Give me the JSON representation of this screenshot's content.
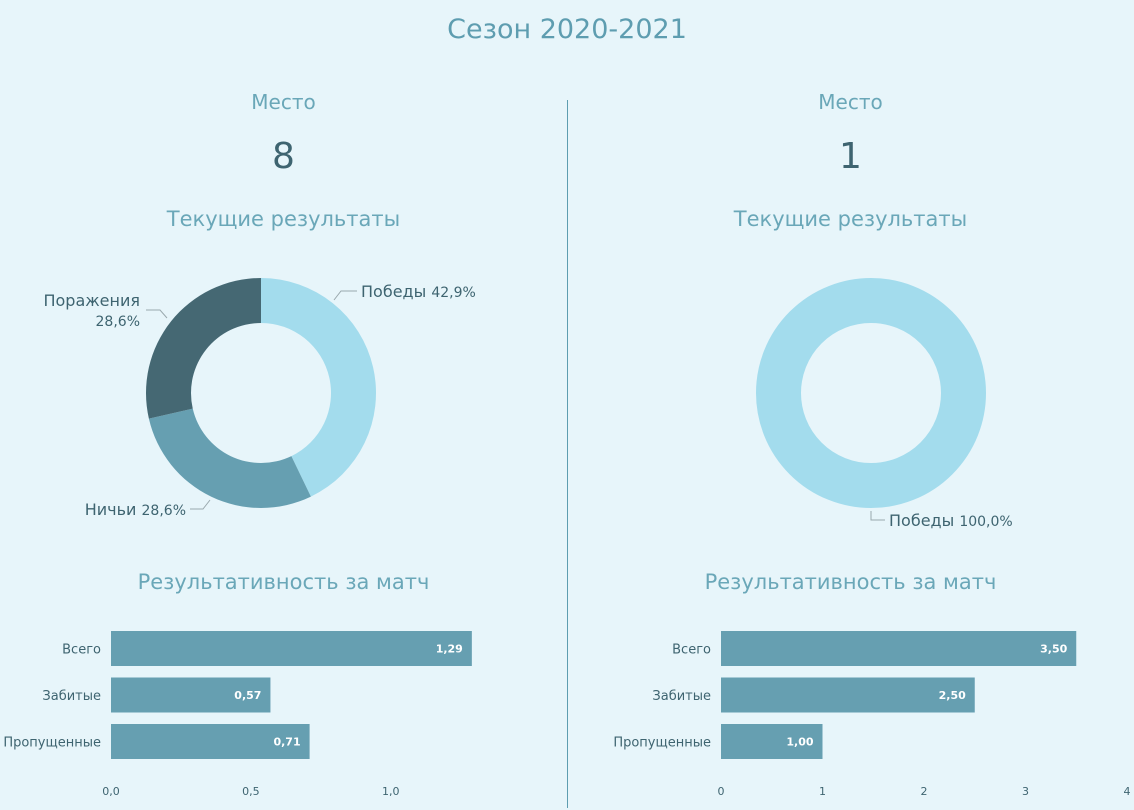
{
  "page_title": "Сезон 2020-2021",
  "colors": {
    "background": "#e7f5fa",
    "wins": "#a3dced",
    "draws": "#669fb1",
    "losses": "#456873",
    "bar": "#669fb1",
    "text_accent": "#6aa7b8",
    "text_dark": "#3e6470"
  },
  "left": {
    "place_label": "Место",
    "place_value": "8",
    "results_title": "Текущие результаты",
    "perf_title": "Результативность за матч"
  },
  "right": {
    "place_label": "Место",
    "place_value": "1",
    "results_title": "Текущие результаты",
    "perf_title": "Результативность за матч"
  },
  "chart_data": [
    {
      "id": "left-donut",
      "type": "pie",
      "title": "Текущие результаты",
      "slices": [
        {
          "label": "Победы",
          "value": 42.9,
          "display": "42,9%"
        },
        {
          "label": "Ничьи",
          "value": 28.6,
          "display": "28,6%"
        },
        {
          "label": "Поражения",
          "value": 28.6,
          "display": "28,6%"
        }
      ]
    },
    {
      "id": "right-donut",
      "type": "pie",
      "title": "Текущие результаты",
      "slices": [
        {
          "label": "Победы",
          "value": 100.0,
          "display": "100,0%"
        }
      ]
    },
    {
      "id": "left-bars",
      "type": "bar",
      "orientation": "horizontal",
      "title": "Результативность за матч",
      "categories": [
        "Всего",
        "Забитые",
        "Пропущенные"
      ],
      "values": [
        1.29,
        0.57,
        0.71
      ],
      "value_labels": [
        "1,29",
        "0,57",
        "0,71"
      ],
      "xlim": [
        0,
        1.43
      ],
      "ticks": [
        0,
        0.5,
        1.0
      ],
      "tick_labels": [
        "0,0",
        "0,5",
        "1,0"
      ]
    },
    {
      "id": "right-bars",
      "type": "bar",
      "orientation": "horizontal",
      "title": "Результативность за матч",
      "categories": [
        "Всего",
        "Забитые",
        "Пропущенные"
      ],
      "values": [
        3.5,
        2.5,
        1.0
      ],
      "value_labels": [
        "3,50",
        "2,50",
        "1,00"
      ],
      "xlim": [
        0,
        4
      ],
      "ticks": [
        0,
        1,
        2,
        3,
        4
      ],
      "tick_labels": [
        "0",
        "1",
        "2",
        "3",
        "4"
      ]
    }
  ]
}
